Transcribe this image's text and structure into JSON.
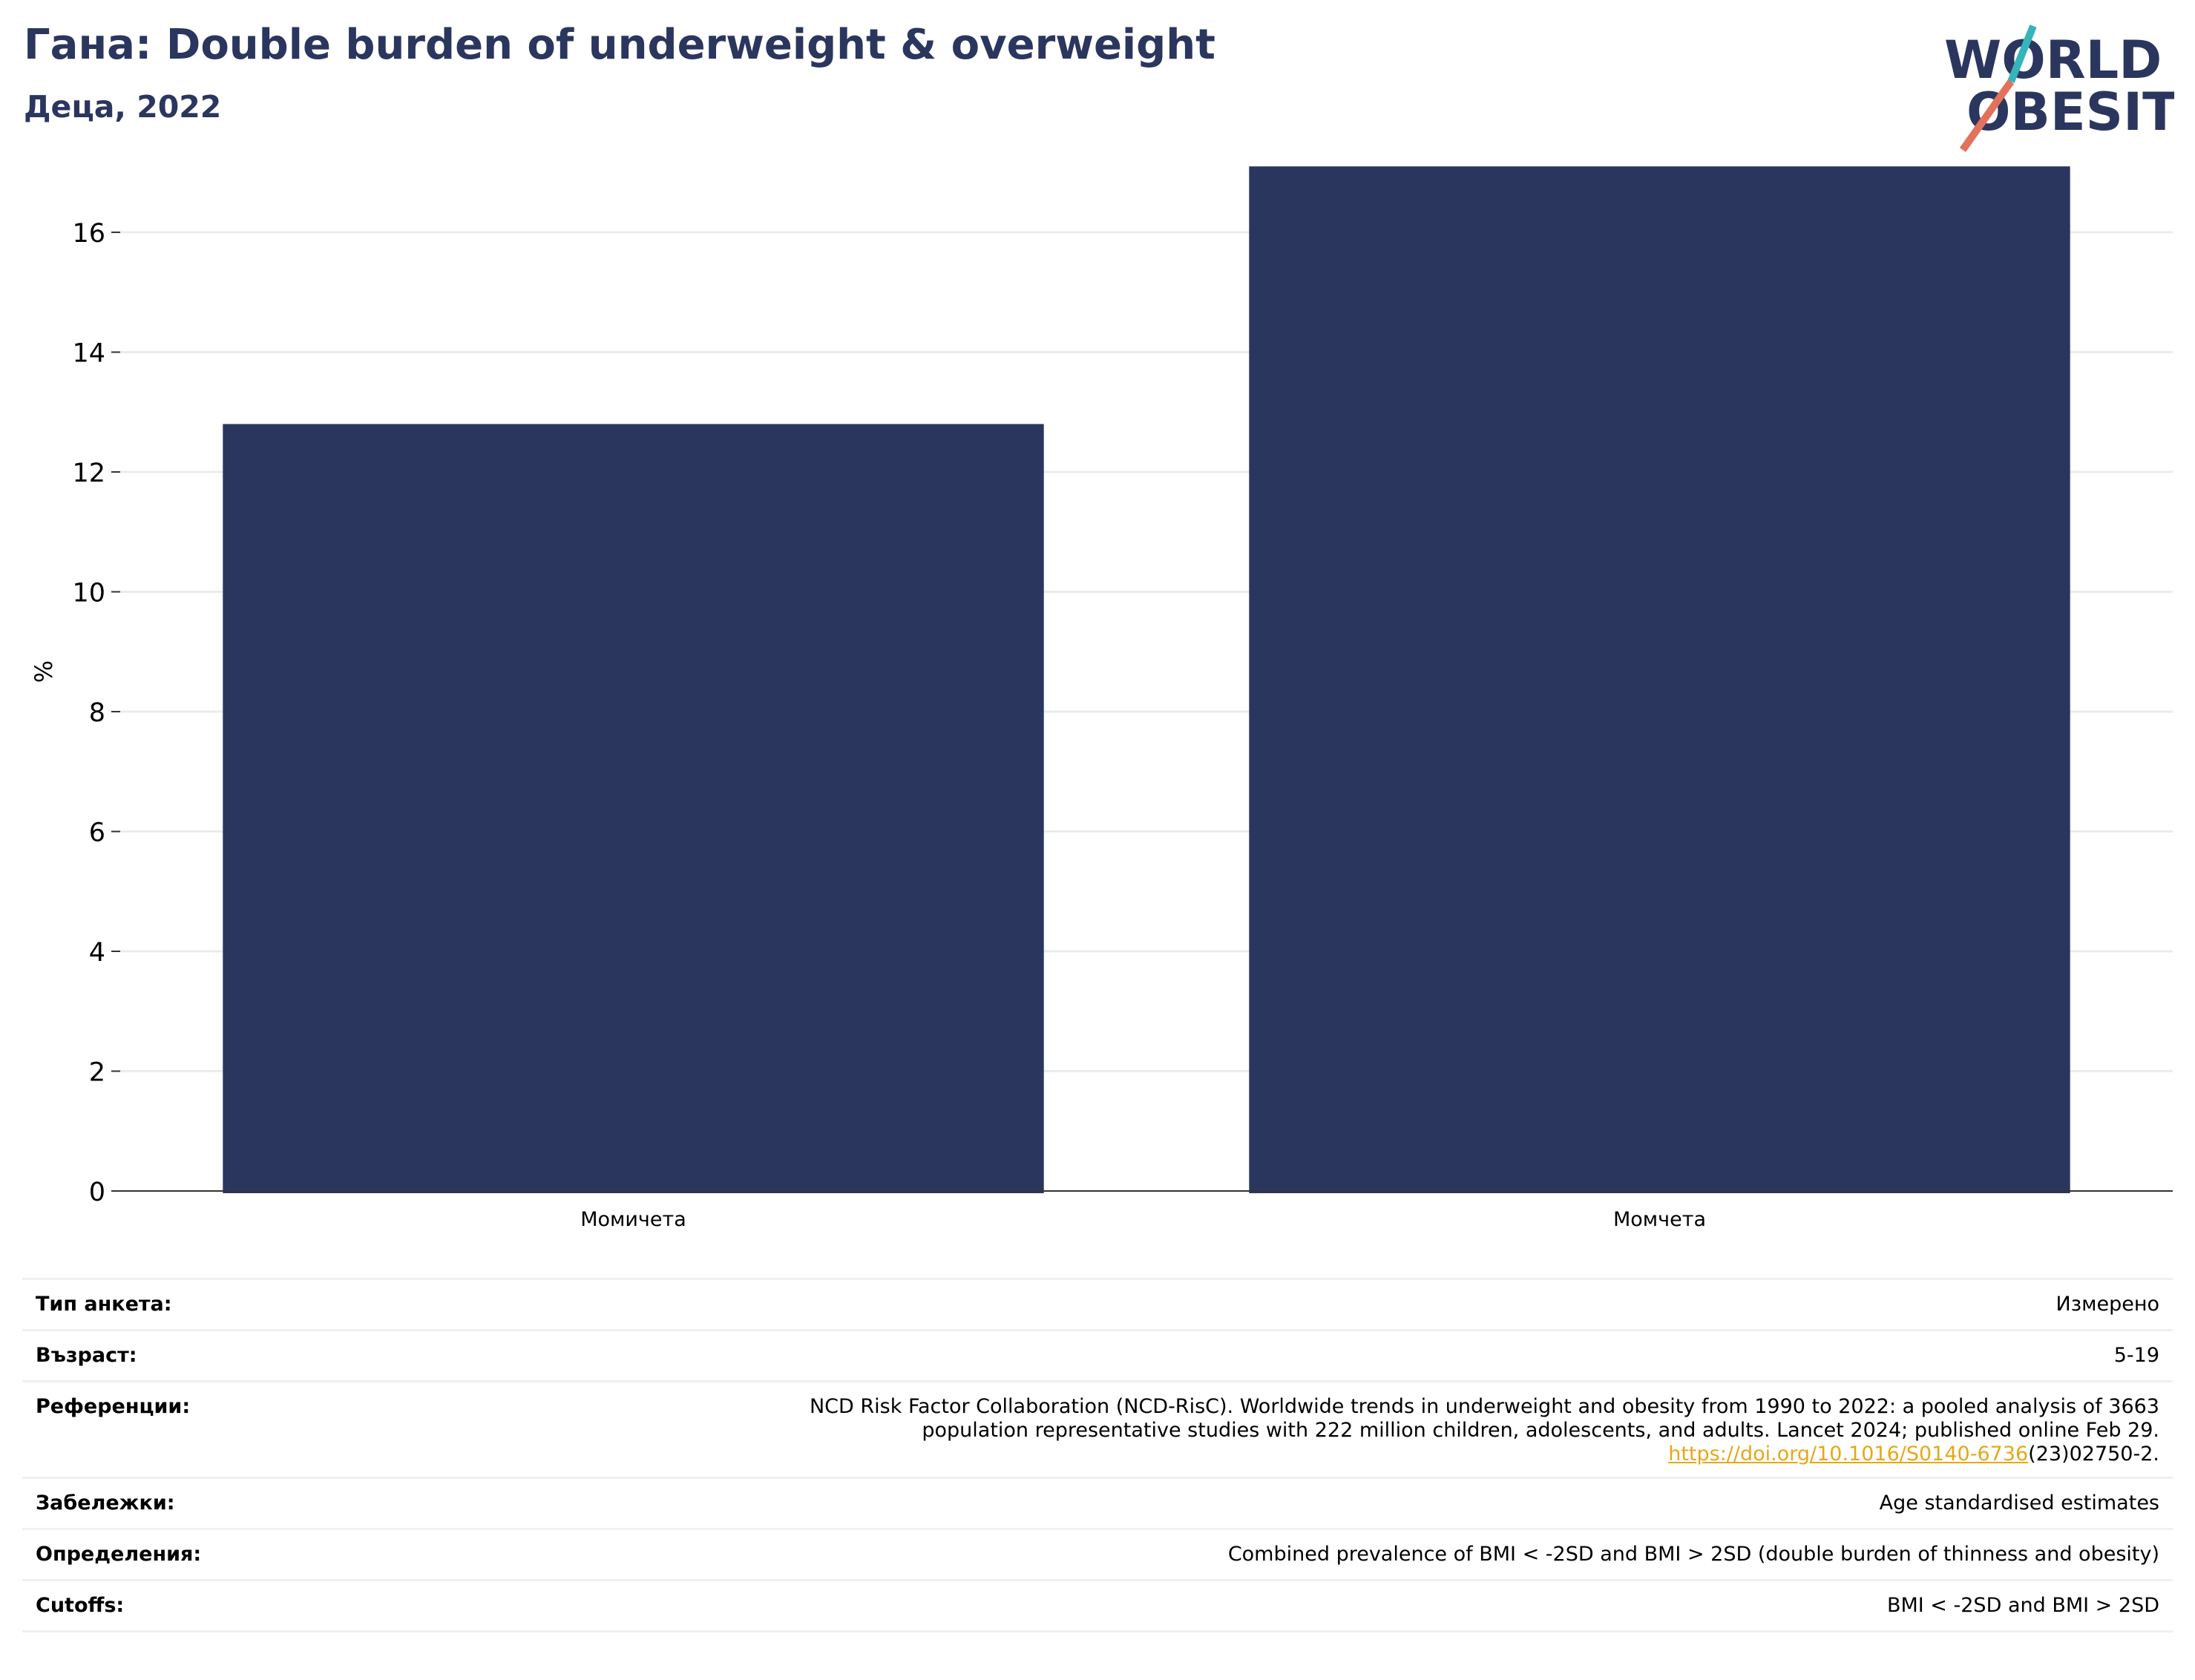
{
  "header": {
    "title": "Гана: Double burden of underweight & overweight",
    "subtitle": "Деца, 2022"
  },
  "logo": {
    "line1": "WORLD",
    "line2": "OBESITY",
    "text_color": "#2b365f",
    "slash_top_color": "#35b5b9",
    "slash_bottom_color": "#e2725b"
  },
  "chart_data": {
    "type": "bar",
    "title": "",
    "xlabel": "",
    "ylabel": "%",
    "categories": [
      "Момичета",
      "Момчета"
    ],
    "values": [
      12.8,
      17.1
    ],
    "ylim": [
      0,
      17.4
    ],
    "yticks": [
      0,
      2,
      4,
      6,
      8,
      10,
      12,
      14,
      16
    ],
    "grid": true,
    "legend": "none",
    "bar_color": "#2b365f"
  },
  "meta": {
    "survey_type_label": "Тип анкета:",
    "survey_type_value": "Измерено",
    "age_label": "Възраст:",
    "age_value": "5-19",
    "references_label": "Референции:",
    "references_line1": "NCD Risk Factor Collaboration (NCD-RisC). Worldwide trends in underweight and obesity from 1990 to 2022: a pooled analysis of 3663",
    "references_line2": "population representative studies with 222 million children, adolescents, and adults. Lancet 2024; published online Feb 29.",
    "references_link": "https://doi.org/10.1016/S0140-6736",
    "references_link_suffix": "(23)02750-2.",
    "notes_label": "Забележки:",
    "notes_value": "Age standardised estimates",
    "definitions_label": "Определения:",
    "definitions_value": "Combined prevalence of BMI < -2SD and BMI > 2SD (double burden of thinness and obesity)",
    "cutoffs_label": "Cutoffs:",
    "cutoffs_value": "BMI < -2SD and BMI > 2SD"
  }
}
